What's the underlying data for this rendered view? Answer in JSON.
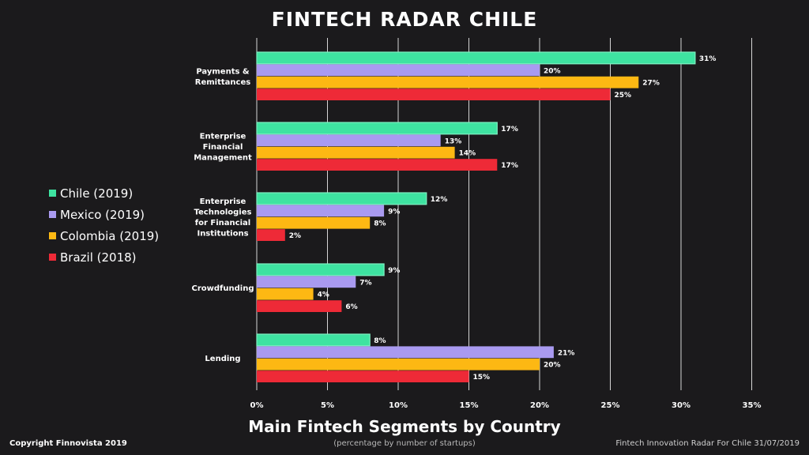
{
  "header": {
    "title": "FINTECH RADAR CHILE"
  },
  "footer": {
    "subtitle": "Main Fintech Segments by Country",
    "note": "(percentage by number of startups)",
    "copyright": "Copyright Finnovista 2019",
    "source": "Fintech Innovation Radar For Chile 31/07/2019"
  },
  "colors": {
    "background": "#1b1a1c",
    "chile": "#3ee3a1",
    "mexico": "#a99af0",
    "colombia": "#fdb813",
    "brazil": "#ee2a37",
    "grid": "#d6d6d6"
  },
  "chart_data": {
    "type": "bar",
    "orientation": "horizontal",
    "title": "Main Fintech Segments by Country",
    "xlabel": "(percentage by number of startups)",
    "ylabel": "",
    "xlim": [
      0,
      35
    ],
    "x_ticks": [
      "0%",
      "5%",
      "10%",
      "15%",
      "20%",
      "25%",
      "30%",
      "35%"
    ],
    "grid": true,
    "legend_position": "left",
    "categories": [
      "Payments & Remittances",
      "Enterprise Financial Management",
      "Enterprise Technologies for Financial Institutions",
      "Crowdfunding",
      "Lending"
    ],
    "category_lines": [
      [
        "Payments &",
        "Remittances"
      ],
      [
        "Enterprise",
        "Financial",
        "Management"
      ],
      [
        "Enterprise",
        "Technologies",
        "for Financial",
        "Institutions"
      ],
      [
        "Crowdfunding"
      ],
      [
        "Lending"
      ]
    ],
    "series": [
      {
        "name": "Chile (2019)",
        "color": "#3ee3a1",
        "values": [
          31,
          17,
          12,
          9,
          8
        ],
        "labels": [
          "31%",
          "17%",
          "12%",
          "9%",
          "8%"
        ]
      },
      {
        "name": "Mexico (2019)",
        "color": "#a99af0",
        "values": [
          20,
          13,
          9,
          7,
          21
        ],
        "labels": [
          "20%",
          "13%",
          "9%",
          "7%",
          "21%"
        ]
      },
      {
        "name": "Colombia (2019)",
        "color": "#fdb813",
        "values": [
          27,
          14,
          8,
          4,
          20
        ],
        "labels": [
          "27%",
          "14%",
          "8%",
          "4%",
          "20%"
        ]
      },
      {
        "name": "Brazil (2018)",
        "color": "#ee2a37",
        "values": [
          25,
          17,
          2,
          6,
          15
        ],
        "labels": [
          "25%",
          "17%",
          "2%",
          "6%",
          "15%"
        ]
      }
    ]
  }
}
